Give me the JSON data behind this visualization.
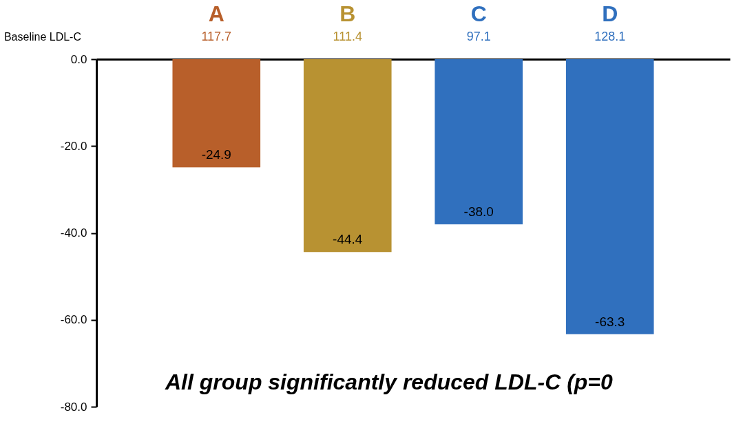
{
  "chart_data": {
    "type": "bar",
    "categories": [
      "A",
      "B",
      "C",
      "D"
    ],
    "values": [
      -24.9,
      -44.4,
      -38.0,
      -63.3
    ],
    "value_labels": [
      "-24.9",
      "-44.4",
      "-38.0",
      "-63.3"
    ],
    "colors": [
      "#b85f2a",
      "#b89232",
      "#3070be",
      "#3070be"
    ],
    "ylim": [
      -80,
      0
    ],
    "yticks": [
      {
        "value": 0,
        "label": "0.0"
      },
      {
        "value": -20,
        "label": "-20.0"
      },
      {
        "value": -40,
        "label": "-40.0"
      },
      {
        "value": -60,
        "label": "-60.0"
      },
      {
        "value": -80,
        "label": "-80.0"
      }
    ],
    "annotations": [
      "Baseline LDL-C",
      "117.7",
      "111.4",
      "97.1",
      "128.1",
      "All group significantly reduced LDL-C (p=0"
    ]
  }
}
